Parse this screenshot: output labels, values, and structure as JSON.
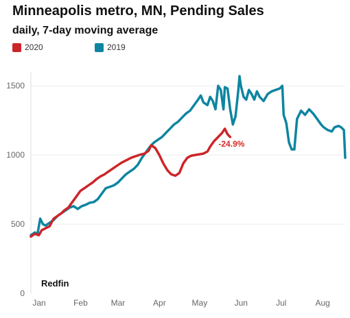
{
  "chart_data": {
    "type": "line",
    "title": "Minneapolis metro, MN, Pending  Sales",
    "subtitle": "daily, 7-day moving average",
    "xlabel": "",
    "ylabel": "",
    "ylim": [
      0,
      1600
    ],
    "yticks": [
      0,
      500,
      1000,
      1500
    ],
    "xticks": [
      "Jan",
      "Feb",
      "Mar",
      "Apr",
      "May",
      "Jun",
      "Jul",
      "Aug"
    ],
    "xlim": [
      1,
      236
    ],
    "x_unit": "day of year",
    "grid": "horizontal",
    "legend_position": "top-left",
    "source": "Redfin",
    "annotation": {
      "text": "-24.9%",
      "color": "#d62728",
      "series": "2020"
    },
    "series": [
      {
        "name": "2020",
        "color": "#cc2529",
        "points": [
          [
            1,
            410
          ],
          [
            4,
            430
          ],
          [
            7,
            420
          ],
          [
            9,
            455
          ],
          [
            12,
            470
          ],
          [
            15,
            485
          ],
          [
            18,
            540
          ],
          [
            21,
            560
          ],
          [
            24,
            580
          ],
          [
            26,
            600
          ],
          [
            29,
            620
          ],
          [
            32,
            660
          ],
          [
            35,
            700
          ],
          [
            38,
            740
          ],
          [
            41,
            760
          ],
          [
            44,
            780
          ],
          [
            47,
            800
          ],
          [
            50,
            825
          ],
          [
            53,
            845
          ],
          [
            56,
            860
          ],
          [
            59,
            880
          ],
          [
            62,
            900
          ],
          [
            65,
            920
          ],
          [
            69,
            945
          ],
          [
            72,
            960
          ],
          [
            76,
            980
          ],
          [
            79,
            990
          ],
          [
            82,
            1000
          ],
          [
            86,
            1010
          ],
          [
            89,
            1030
          ],
          [
            91,
            1070
          ],
          [
            94,
            1050
          ],
          [
            97,
            1000
          ],
          [
            100,
            940
          ],
          [
            103,
            890
          ],
          [
            106,
            860
          ],
          [
            109,
            850
          ],
          [
            112,
            870
          ],
          [
            115,
            940
          ],
          [
            118,
            980
          ],
          [
            121,
            995
          ],
          [
            124,
            1000
          ],
          [
            127,
            1005
          ],
          [
            130,
            1010
          ],
          [
            133,
            1025
          ],
          [
            135,
            1060
          ],
          [
            138,
            1100
          ],
          [
            141,
            1130
          ],
          [
            144,
            1160
          ],
          [
            146,
            1190
          ],
          [
            148,
            1150
          ],
          [
            150,
            1130
          ]
        ]
      },
      {
        "name": "2019",
        "color": "#0e85a0",
        "points": [
          [
            1,
            420
          ],
          [
            4,
            440
          ],
          [
            6,
            430
          ],
          [
            8,
            540
          ],
          [
            10,
            500
          ],
          [
            12,
            490
          ],
          [
            15,
            510
          ],
          [
            18,
            530
          ],
          [
            21,
            560
          ],
          [
            24,
            580
          ],
          [
            27,
            600
          ],
          [
            30,
            620
          ],
          [
            33,
            630
          ],
          [
            36,
            610
          ],
          [
            39,
            630
          ],
          [
            42,
            640
          ],
          [
            45,
            655
          ],
          [
            48,
            660
          ],
          [
            51,
            680
          ],
          [
            54,
            720
          ],
          [
            57,
            760
          ],
          [
            60,
            770
          ],
          [
            63,
            780
          ],
          [
            66,
            800
          ],
          [
            69,
            830
          ],
          [
            72,
            860
          ],
          [
            75,
            880
          ],
          [
            78,
            900
          ],
          [
            81,
            930
          ],
          [
            84,
            980
          ],
          [
            87,
            1020
          ],
          [
            90,
            1060
          ],
          [
            93,
            1090
          ],
          [
            96,
            1110
          ],
          [
            99,
            1130
          ],
          [
            102,
            1160
          ],
          [
            105,
            1190
          ],
          [
            108,
            1220
          ],
          [
            111,
            1240
          ],
          [
            114,
            1270
          ],
          [
            117,
            1300
          ],
          [
            120,
            1320
          ],
          [
            123,
            1360
          ],
          [
            126,
            1400
          ],
          [
            128,
            1430
          ],
          [
            130,
            1380
          ],
          [
            133,
            1360
          ],
          [
            135,
            1420
          ],
          [
            137,
            1390
          ],
          [
            139,
            1330
          ],
          [
            141,
            1500
          ],
          [
            143,
            1470
          ],
          [
            145,
            1330
          ],
          [
            146,
            1490
          ],
          [
            148,
            1480
          ],
          [
            150,
            1330
          ],
          [
            152,
            1220
          ],
          [
            154,
            1280
          ],
          [
            156,
            1460
          ],
          [
            157,
            1570
          ],
          [
            158,
            1500
          ],
          [
            160,
            1420
          ],
          [
            162,
            1400
          ],
          [
            164,
            1470
          ],
          [
            166,
            1440
          ],
          [
            168,
            1400
          ],
          [
            170,
            1460
          ],
          [
            172,
            1420
          ],
          [
            175,
            1390
          ],
          [
            178,
            1440
          ],
          [
            181,
            1460
          ],
          [
            184,
            1470
          ],
          [
            187,
            1480
          ],
          [
            189,
            1500
          ],
          [
            190,
            1290
          ],
          [
            192,
            1230
          ],
          [
            194,
            1090
          ],
          [
            196,
            1040
          ],
          [
            198,
            1040
          ],
          [
            200,
            1260
          ],
          [
            203,
            1320
          ],
          [
            206,
            1290
          ],
          [
            209,
            1330
          ],
          [
            212,
            1300
          ],
          [
            215,
            1260
          ],
          [
            218,
            1220
          ],
          [
            220,
            1200
          ],
          [
            223,
            1180
          ],
          [
            226,
            1170
          ],
          [
            228,
            1200
          ],
          [
            231,
            1210
          ],
          [
            233,
            1200
          ],
          [
            235,
            1180
          ],
          [
            236,
            980
          ]
        ]
      }
    ]
  },
  "legend": [
    {
      "label": "2020",
      "color": "#cc2529"
    },
    {
      "label": "2019",
      "color": "#0e85a0"
    }
  ]
}
